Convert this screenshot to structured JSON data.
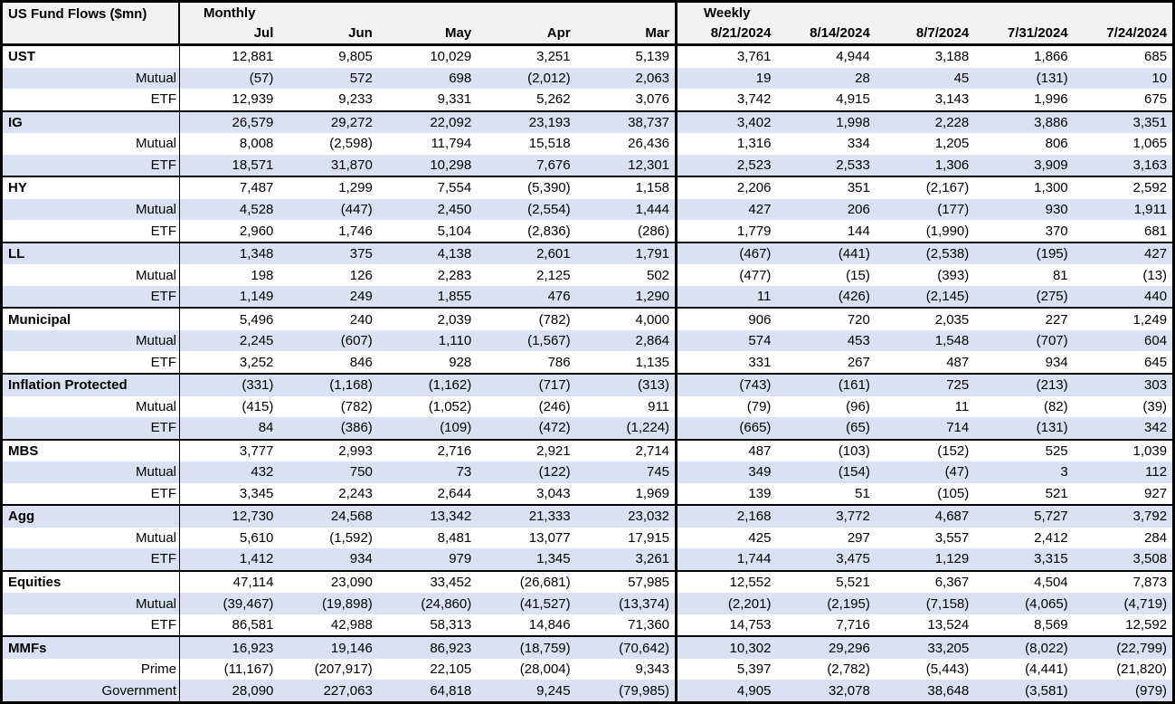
{
  "style": {
    "shaded_row_color": "#d9e1f2",
    "header_bg_color": "#f2f2f2",
    "border_color": "#000000"
  },
  "chart_data": {
    "type": "table",
    "title": "US Fund Flows ($mn)",
    "sections": [
      {
        "label": "Monthly",
        "columns": [
          "Jul",
          "Jun",
          "May",
          "Apr",
          "Mar"
        ]
      },
      {
        "label": "Weekly",
        "columns": [
          "8/21/2024",
          "8/14/2024",
          "8/7/2024",
          "7/31/2024",
          "7/24/2024"
        ]
      }
    ],
    "groups": [
      {
        "name": "UST",
        "monthly": [
          "12,881",
          "9,805",
          "10,029",
          "3,251",
          "5,139"
        ],
        "weekly": [
          "3,761",
          "4,944",
          "3,188",
          "1,866",
          "685"
        ],
        "rows": [
          {
            "label": "Mutual",
            "monthly": [
              "(57)",
              "572",
              "698",
              "(2,012)",
              "2,063"
            ],
            "weekly": [
              "19",
              "28",
              "45",
              "(131)",
              "10"
            ]
          },
          {
            "label": "ETF",
            "monthly": [
              "12,939",
              "9,233",
              "9,331",
              "5,262",
              "3,076"
            ],
            "weekly": [
              "3,742",
              "4,915",
              "3,143",
              "1,996",
              "675"
            ]
          }
        ]
      },
      {
        "name": "IG",
        "monthly": [
          "26,579",
          "29,272",
          "22,092",
          "23,193",
          "38,737"
        ],
        "weekly": [
          "3,402",
          "1,998",
          "2,228",
          "3,886",
          "3,351"
        ],
        "rows": [
          {
            "label": "Mutual",
            "monthly": [
              "8,008",
              "(2,598)",
              "11,794",
              "15,518",
              "26,436"
            ],
            "weekly": [
              "1,316",
              "334",
              "1,205",
              "806",
              "1,065"
            ]
          },
          {
            "label": "ETF",
            "monthly": [
              "18,571",
              "31,870",
              "10,298",
              "7,676",
              "12,301"
            ],
            "weekly": [
              "2,523",
              "2,533",
              "1,306",
              "3,909",
              "3,163"
            ]
          }
        ]
      },
      {
        "name": "HY",
        "monthly": [
          "7,487",
          "1,299",
          "7,554",
          "(5,390)",
          "1,158"
        ],
        "weekly": [
          "2,206",
          "351",
          "(2,167)",
          "1,300",
          "2,592"
        ],
        "rows": [
          {
            "label": "Mutual",
            "monthly": [
              "4,528",
              "(447)",
              "2,450",
              "(2,554)",
              "1,444"
            ],
            "weekly": [
              "427",
              "206",
              "(177)",
              "930",
              "1,911"
            ]
          },
          {
            "label": "ETF",
            "monthly": [
              "2,960",
              "1,746",
              "5,104",
              "(2,836)",
              "(286)"
            ],
            "weekly": [
              "1,779",
              "144",
              "(1,990)",
              "370",
              "681"
            ]
          }
        ]
      },
      {
        "name": "LL",
        "monthly": [
          "1,348",
          "375",
          "4,138",
          "2,601",
          "1,791"
        ],
        "weekly": [
          "(467)",
          "(441)",
          "(2,538)",
          "(195)",
          "427"
        ],
        "rows": [
          {
            "label": "Mutual",
            "monthly": [
              "198",
              "126",
              "2,283",
              "2,125",
              "502"
            ],
            "weekly": [
              "(477)",
              "(15)",
              "(393)",
              "81",
              "(13)"
            ]
          },
          {
            "label": "ETF",
            "monthly": [
              "1,149",
              "249",
              "1,855",
              "476",
              "1,290"
            ],
            "weekly": [
              "11",
              "(426)",
              "(2,145)",
              "(275)",
              "440"
            ]
          }
        ]
      },
      {
        "name": "Municipal",
        "monthly": [
          "5,496",
          "240",
          "2,039",
          "(782)",
          "4,000"
        ],
        "weekly": [
          "906",
          "720",
          "2,035",
          "227",
          "1,249"
        ],
        "rows": [
          {
            "label": "Mutual",
            "monthly": [
              "2,245",
              "(607)",
              "1,110",
              "(1,567)",
              "2,864"
            ],
            "weekly": [
              "574",
              "453",
              "1,548",
              "(707)",
              "604"
            ]
          },
          {
            "label": "ETF",
            "monthly": [
              "3,252",
              "846",
              "928",
              "786",
              "1,135"
            ],
            "weekly": [
              "331",
              "267",
              "487",
              "934",
              "645"
            ]
          }
        ]
      },
      {
        "name": "Inflation Protected",
        "monthly": [
          "(331)",
          "(1,168)",
          "(1,162)",
          "(717)",
          "(313)"
        ],
        "weekly": [
          "(743)",
          "(161)",
          "725",
          "(213)",
          "303"
        ],
        "rows": [
          {
            "label": "Mutual",
            "monthly": [
              "(415)",
              "(782)",
              "(1,052)",
              "(246)",
              "911"
            ],
            "weekly": [
              "(79)",
              "(96)",
              "11",
              "(82)",
              "(39)"
            ]
          },
          {
            "label": "ETF",
            "monthly": [
              "84",
              "(386)",
              "(109)",
              "(472)",
              "(1,224)"
            ],
            "weekly": [
              "(665)",
              "(65)",
              "714",
              "(131)",
              "342"
            ]
          }
        ]
      },
      {
        "name": "MBS",
        "monthly": [
          "3,777",
          "2,993",
          "2,716",
          "2,921",
          "2,714"
        ],
        "weekly": [
          "487",
          "(103)",
          "(152)",
          "525",
          "1,039"
        ],
        "rows": [
          {
            "label": "Mutual",
            "monthly": [
              "432",
              "750",
              "73",
              "(122)",
              "745"
            ],
            "weekly": [
              "349",
              "(154)",
              "(47)",
              "3",
              "112"
            ]
          },
          {
            "label": "ETF",
            "monthly": [
              "3,345",
              "2,243",
              "2,644",
              "3,043",
              "1,969"
            ],
            "weekly": [
              "139",
              "51",
              "(105)",
              "521",
              "927"
            ]
          }
        ]
      },
      {
        "name": "Agg",
        "monthly": [
          "12,730",
          "24,568",
          "13,342",
          "21,333",
          "23,032"
        ],
        "weekly": [
          "2,168",
          "3,772",
          "4,687",
          "5,727",
          "3,792"
        ],
        "rows": [
          {
            "label": "Mutual",
            "monthly": [
              "5,610",
              "(1,592)",
              "8,481",
              "13,077",
              "17,915"
            ],
            "weekly": [
              "425",
              "297",
              "3,557",
              "2,412",
              "284"
            ]
          },
          {
            "label": "ETF",
            "monthly": [
              "1,412",
              "934",
              "979",
              "1,345",
              "3,261"
            ],
            "weekly": [
              "1,744",
              "3,475",
              "1,129",
              "3,315",
              "3,508"
            ]
          }
        ]
      },
      {
        "name": "Equities",
        "monthly": [
          "47,114",
          "23,090",
          "33,452",
          "(26,681)",
          "57,985"
        ],
        "weekly": [
          "12,552",
          "5,521",
          "6,367",
          "4,504",
          "7,873"
        ],
        "rows": [
          {
            "label": "Mutual",
            "monthly": [
              "(39,467)",
              "(19,898)",
              "(24,860)",
              "(41,527)",
              "(13,374)"
            ],
            "weekly": [
              "(2,201)",
              "(2,195)",
              "(7,158)",
              "(4,065)",
              "(4,719)"
            ]
          },
          {
            "label": "ETF",
            "monthly": [
              "86,581",
              "42,988",
              "58,313",
              "14,846",
              "71,360"
            ],
            "weekly": [
              "14,753",
              "7,716",
              "13,524",
              "8,569",
              "12,592"
            ]
          }
        ]
      },
      {
        "name": "MMFs",
        "monthly": [
          "16,923",
          "19,146",
          "86,923",
          "(18,759)",
          "(70,642)"
        ],
        "weekly": [
          "10,302",
          "29,296",
          "33,205",
          "(8,022)",
          "(22,799)"
        ],
        "rows": [
          {
            "label": "Prime",
            "monthly": [
              "(11,167)",
              "(207,917)",
              "22,105",
              "(28,004)",
              "9,343"
            ],
            "weekly": [
              "5,397",
              "(2,782)",
              "(5,443)",
              "(4,441)",
              "(21,820)"
            ]
          },
          {
            "label": "Government",
            "monthly": [
              "28,090",
              "227,063",
              "64,818",
              "9,245",
              "(79,985)"
            ],
            "weekly": [
              "4,905",
              "32,078",
              "38,648",
              "(3,581)",
              "(979)"
            ]
          }
        ]
      }
    ]
  }
}
